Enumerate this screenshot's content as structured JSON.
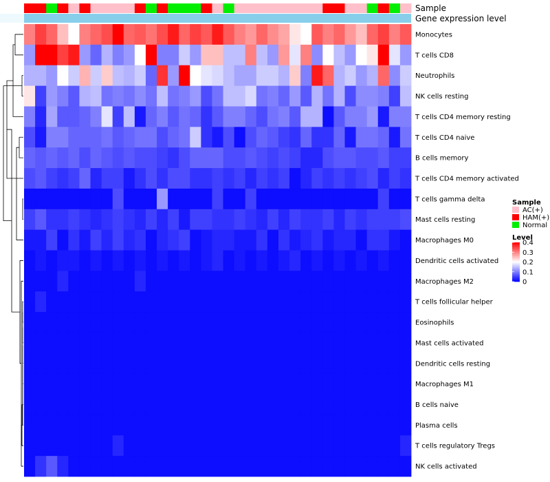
{
  "chart_data": {
    "type": "heatmap",
    "title": "",
    "annotations": [
      {
        "name": "Sample"
      },
      {
        "name": "Gene expression level"
      }
    ],
    "rows": [
      "Monocytes",
      "T cells CD8",
      "Neutrophils",
      "NK cells resting",
      "T cells CD4 memory resting",
      "T cells CD4 naive",
      "B cells memory",
      "T cells CD4 memory activated",
      "T cells gamma delta",
      "Mast cells resting",
      "Macrophages M0",
      "Dendritic cells activated",
      "Macrophages M2",
      "T cells follicular helper",
      "Eosinophils",
      "Mast cells activated",
      "Dendritic cells resting",
      "Macrophages M1",
      "B cells naive",
      "Plasma cells",
      "T cells regulatory  Tregs",
      "NK cells activated"
    ],
    "sample_groups": [
      "HAM(+)",
      "HAM(+)",
      "Normal",
      "HAM(+)",
      "AC(+)",
      "HAM(+)",
      "AC(+)",
      "AC(+)",
      "AC(+)",
      "AC(+)",
      "HAM(+)",
      "Normal",
      "HAM(+)",
      "Normal",
      "Normal",
      "Normal",
      "HAM(+)",
      "AC(+)",
      "Normal",
      "AC(+)",
      "AC(+)",
      "AC(+)",
      "AC(+)",
      "AC(+)",
      "AC(+)",
      "AC(+)",
      "AC(+)",
      "HAM(+)",
      "HAM(+)",
      "AC(+)",
      "AC(+)",
      "Normal",
      "HAM(+)",
      "Normal",
      "AC(+)"
    ],
    "values": [
      [
        0.3,
        0.35,
        0.32,
        0.25,
        0.2,
        0.3,
        0.32,
        0.34,
        0.4,
        0.32,
        0.33,
        0.31,
        0.34,
        0.38,
        0.32,
        0.35,
        0.33,
        0.38,
        0.33,
        0.3,
        0.28,
        0.32,
        0.29,
        0.27,
        0.22,
        0.2,
        0.33,
        0.3,
        0.32,
        0.28,
        0.25,
        0.32,
        0.35,
        0.3,
        0.33
      ],
      [
        0.12,
        0.4,
        0.4,
        0.35,
        0.38,
        0.12,
        0.08,
        0.14,
        0.1,
        0.12,
        0.2,
        0.4,
        0.1,
        0.1,
        0.16,
        0.12,
        0.25,
        0.25,
        0.15,
        0.15,
        0.3,
        0.15,
        0.12,
        0.28,
        0.18,
        0.3,
        0.11,
        0.2,
        0.15,
        0.12,
        0.2,
        0.22,
        0.4,
        0.18,
        0.12
      ],
      [
        0.14,
        0.14,
        0.12,
        0.2,
        0.16,
        0.26,
        0.16,
        0.24,
        0.15,
        0.14,
        0.16,
        0.08,
        0.36,
        0.12,
        0.4,
        0.2,
        0.18,
        0.17,
        0.15,
        0.13,
        0.13,
        0.16,
        0.16,
        0.14,
        0.24,
        0.1,
        0.38,
        0.32,
        0.14,
        0.16,
        0.12,
        0.14,
        0.32,
        0.11,
        0.16
      ],
      [
        0.22,
        0.05,
        0.12,
        0.1,
        0.07,
        0.14,
        0.15,
        0.09,
        0.1,
        0.09,
        0.11,
        0.09,
        0.15,
        0.09,
        0.1,
        0.12,
        0.06,
        0.09,
        0.15,
        0.15,
        0.17,
        0.09,
        0.1,
        0.08,
        0.12,
        0.07,
        0.14,
        0.09,
        0.14,
        0.06,
        0.11,
        0.11,
        0.1,
        0.05,
        0.15
      ],
      [
        0.1,
        0.03,
        0.13,
        0.07,
        0.07,
        0.08,
        0.1,
        0.18,
        0.05,
        0.15,
        0.02,
        0.08,
        0.1,
        0.07,
        0.09,
        0.08,
        0.04,
        0.07,
        0.1,
        0.1,
        0.08,
        0.06,
        0.09,
        0.1,
        0.07,
        0.14,
        0.14,
        0.01,
        0.07,
        0.1,
        0.1,
        0.12,
        0.02,
        0.1,
        0.1
      ],
      [
        0.06,
        0.02,
        0.1,
        0.1,
        0.08,
        0.08,
        0.08,
        0.09,
        0.07,
        0.08,
        0.09,
        0.09,
        0.06,
        0.08,
        0.09,
        0.16,
        0.04,
        0.02,
        0.06,
        0.01,
        0.06,
        0.08,
        0.07,
        0.05,
        0.04,
        0.08,
        0.04,
        0.04,
        0.08,
        0.02,
        0.09,
        0.09,
        0.08,
        0.02,
        0.09
      ],
      [
        0.08,
        0.07,
        0.08,
        0.07,
        0.08,
        0.06,
        0.08,
        0.07,
        0.06,
        0.07,
        0.06,
        0.06,
        0.05,
        0.04,
        0.06,
        0.08,
        0.08,
        0.08,
        0.06,
        0.06,
        0.07,
        0.06,
        0.05,
        0.06,
        0.05,
        0.03,
        0.03,
        0.06,
        0.07,
        0.07,
        0.06,
        0.06,
        0.07,
        0.05,
        0.05
      ],
      [
        0.06,
        0.07,
        0.05,
        0.04,
        0.05,
        0.08,
        0.03,
        0.05,
        0.05,
        0.02,
        0.04,
        0.06,
        0.04,
        0.06,
        0.06,
        0.04,
        0.04,
        0.05,
        0.04,
        0.05,
        0.03,
        0.05,
        0.04,
        0.05,
        0.01,
        0.03,
        0.05,
        0.04,
        0.05,
        0.04,
        0.05,
        0.06,
        0.03,
        0.05,
        0.04
      ],
      [
        0.01,
        0.01,
        0.01,
        0.01,
        0.01,
        0.01,
        0.01,
        0.01,
        0.06,
        0.01,
        0.01,
        0.01,
        0.12,
        0.01,
        0.01,
        0.01,
        0.01,
        0.05,
        0.01,
        0.01,
        0.05,
        0.01,
        0.01,
        0.01,
        0.01,
        0.01,
        0.01,
        0.01,
        0.01,
        0.01,
        0.01,
        0.01,
        0.05,
        0.01,
        0.01
      ],
      [
        0.05,
        0.07,
        0.04,
        0.04,
        0.05,
        0.04,
        0.03,
        0.04,
        0.05,
        0.04,
        0.03,
        0.05,
        0.03,
        0.05,
        0.02,
        0.05,
        0.05,
        0.04,
        0.04,
        0.05,
        0.04,
        0.03,
        0.05,
        0.03,
        0.05,
        0.04,
        0.04,
        0.05,
        0.03,
        0.05,
        0.04,
        0.05,
        0.05,
        0.05,
        0.06
      ],
      [
        0.02,
        0.02,
        0.05,
        0.01,
        0.04,
        0.02,
        0.05,
        0.03,
        0.05,
        0.03,
        0.04,
        0.01,
        0.03,
        0.04,
        0.05,
        0.01,
        0.02,
        0.03,
        0.03,
        0.02,
        0.02,
        0.04,
        0.01,
        0.04,
        0.02,
        0.03,
        0.04,
        0.02,
        0.03,
        0.03,
        0.01,
        0.04,
        0.04,
        0.02,
        0.01
      ],
      [
        0.01,
        0.02,
        0.01,
        0.02,
        0.02,
        0.01,
        0.02,
        0.01,
        0.02,
        0.01,
        0.02,
        0.01,
        0.02,
        0.01,
        0.02,
        0.01,
        0.02,
        0.03,
        0.01,
        0.02,
        0.01,
        0.02,
        0.01,
        0.02,
        0.03,
        0.01,
        0.02,
        0.01,
        0.02,
        0.01,
        0.02,
        0.01,
        0.02,
        0.01,
        0.01
      ],
      [
        0.01,
        0.01,
        0.01,
        0.03,
        0.01,
        0.01,
        0.01,
        0.01,
        0.01,
        0.01,
        0.03,
        0.01,
        0.01,
        0.01,
        0.01,
        0.01,
        0.01,
        0.01,
        0.01,
        0.01,
        0.01,
        0.01,
        0.01,
        0.01,
        0.01,
        0.01,
        0.01,
        0.01,
        0.01,
        0.01,
        0.01,
        0.01,
        0.01,
        0.01,
        0.01
      ],
      [
        0.01,
        0.03,
        0.01,
        0.01,
        0.01,
        0.01,
        0.01,
        0.01,
        0.01,
        0.01,
        0.01,
        0.01,
        0.01,
        0.01,
        0.01,
        0.01,
        0.01,
        0.01,
        0.01,
        0.01,
        0.01,
        0.01,
        0.01,
        0.01,
        0.01,
        0.01,
        0.01,
        0.01,
        0.01,
        0.01,
        0.01,
        0.01,
        0.01,
        0.01,
        0.01
      ],
      [
        0.01,
        0.01,
        0.01,
        0.01,
        0.01,
        0.01,
        0.01,
        0.01,
        0.01,
        0.01,
        0.01,
        0.01,
        0.01,
        0.01,
        0.01,
        0.01,
        0.01,
        0.01,
        0.01,
        0.01,
        0.01,
        0.01,
        0.01,
        0.01,
        0.01,
        0.01,
        0.01,
        0.01,
        0.01,
        0.01,
        0.01,
        0.01,
        0.01,
        0.01,
        0.01
      ],
      [
        0.01,
        0.01,
        0.01,
        0.01,
        0.01,
        0.01,
        0.01,
        0.01,
        0.01,
        0.01,
        0.01,
        0.01,
        0.01,
        0.01,
        0.01,
        0.01,
        0.01,
        0.01,
        0.01,
        0.01,
        0.01,
        0.01,
        0.01,
        0.01,
        0.01,
        0.01,
        0.01,
        0.01,
        0.01,
        0.01,
        0.01,
        0.01,
        0.01,
        0.01,
        0.01
      ],
      [
        0.01,
        0.01,
        0.01,
        0.01,
        0.01,
        0.01,
        0.01,
        0.01,
        0.01,
        0.01,
        0.01,
        0.01,
        0.01,
        0.01,
        0.01,
        0.01,
        0.01,
        0.01,
        0.01,
        0.01,
        0.01,
        0.01,
        0.01,
        0.01,
        0.01,
        0.01,
        0.01,
        0.01,
        0.01,
        0.01,
        0.01,
        0.01,
        0.01,
        0.01,
        0.01
      ],
      [
        0.01,
        0.01,
        0.01,
        0.01,
        0.01,
        0.01,
        0.01,
        0.01,
        0.01,
        0.01,
        0.01,
        0.01,
        0.01,
        0.01,
        0.01,
        0.01,
        0.01,
        0.01,
        0.01,
        0.01,
        0.01,
        0.01,
        0.01,
        0.01,
        0.01,
        0.01,
        0.01,
        0.01,
        0.01,
        0.01,
        0.01,
        0.01,
        0.01,
        0.01,
        0.01
      ],
      [
        0.01,
        0.01,
        0.01,
        0.01,
        0.01,
        0.01,
        0.01,
        0.01,
        0.01,
        0.01,
        0.01,
        0.01,
        0.01,
        0.01,
        0.01,
        0.01,
        0.01,
        0.01,
        0.01,
        0.01,
        0.01,
        0.01,
        0.01,
        0.01,
        0.01,
        0.01,
        0.01,
        0.01,
        0.01,
        0.01,
        0.01,
        0.01,
        0.01,
        0.01,
        0.01
      ],
      [
        0.01,
        0.01,
        0.01,
        0.01,
        0.01,
        0.01,
        0.01,
        0.01,
        0.01,
        0.01,
        0.01,
        0.01,
        0.01,
        0.01,
        0.01,
        0.01,
        0.01,
        0.01,
        0.01,
        0.01,
        0.01,
        0.01,
        0.01,
        0.01,
        0.01,
        0.01,
        0.01,
        0.01,
        0.01,
        0.01,
        0.01,
        0.01,
        0.01,
        0.01,
        0.01
      ],
      [
        0.01,
        0.01,
        0.01,
        0.01,
        0.01,
        0.01,
        0.01,
        0.01,
        0.03,
        0.01,
        0.01,
        0.01,
        0.01,
        0.01,
        0.01,
        0.01,
        0.01,
        0.01,
        0.01,
        0.01,
        0.01,
        0.01,
        0.01,
        0.01,
        0.01,
        0.01,
        0.01,
        0.01,
        0.01,
        0.01,
        0.01,
        0.01,
        0.01,
        0.01,
        0.03
      ],
      [
        0.01,
        0.04,
        0.07,
        0.03,
        0.01,
        0.01,
        0.01,
        0.01,
        0.01,
        0.01,
        0.01,
        0.01,
        0.01,
        0.01,
        0.01,
        0.01,
        0.01,
        0.01,
        0.01,
        0.01,
        0.01,
        0.01,
        0.01,
        0.01,
        0.01,
        0.01,
        0.01,
        0.01,
        0.01,
        0.01,
        0.01,
        0.01,
        0.01,
        0.01,
        0.01
      ]
    ],
    "legend": {
      "sample": {
        "title": "Sample",
        "entries": [
          {
            "label": "AC(+)",
            "color": "#FFC0CB"
          },
          {
            "label": "HAM(+)",
            "color": "#FF0000"
          },
          {
            "label": "Normal",
            "color": "#00EE00"
          }
        ]
      },
      "level": {
        "title": "Level",
        "ticks": [
          "0.4",
          "0.3",
          "0.2",
          "0.1",
          "0"
        ],
        "tick_values": [
          0.4,
          0.3,
          0.2,
          0.1,
          0
        ],
        "range": [
          0,
          0.4
        ],
        "colors": {
          "low": "#0000FF",
          "mid": "#FFFFFF",
          "high": "#FF0000"
        }
      }
    },
    "expression_bar_color": "#87CEEB",
    "colors": {
      "dendrogram": "#000000",
      "background": "#FFFFFF"
    }
  }
}
